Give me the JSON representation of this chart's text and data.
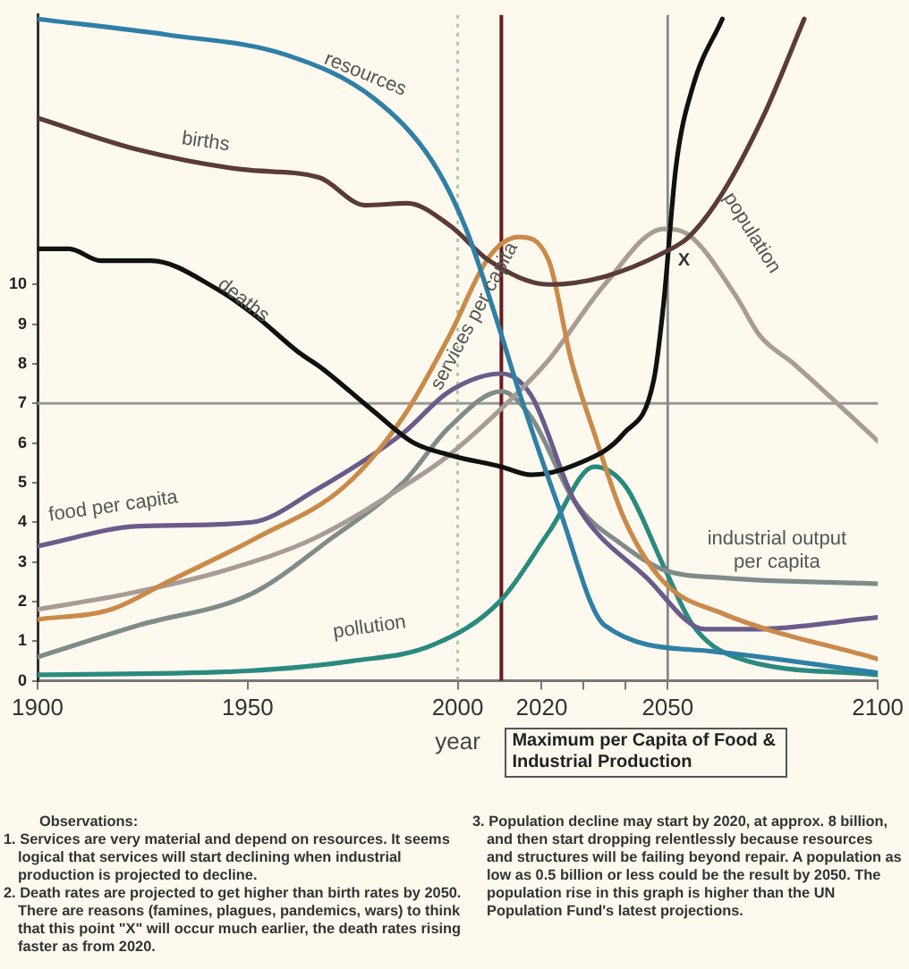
{
  "chart_data": {
    "type": "line",
    "xlabel": "year",
    "xlim": [
      1900,
      2100
    ],
    "xticks": [
      1900,
      1950,
      2000,
      2020,
      {
        "value": 2030,
        "label": null
      },
      {
        "value": 2040,
        "label": null
      },
      2050,
      2100
    ],
    "ylim": [
      0,
      16.8
    ],
    "yticks": [
      0,
      1,
      2,
      3,
      4,
      5,
      6,
      7,
      8,
      9,
      10
    ],
    "grid": false,
    "legend": false,
    "marker": "none",
    "line_style": "solid",
    "series": [
      {
        "name": "resources",
        "color": "#2f7fa6",
        "x": [
          1900,
          1931,
          1959,
          1980,
          1994,
          2002,
          2009.6,
          2014.6,
          2024,
          2035,
          2060,
          2100
        ],
        "values": [
          16.7,
          16.3,
          15.8,
          14.7,
          13.1,
          11.4,
          9.0,
          7.3,
          4.4,
          1.4,
          0.75,
          0.2
        ]
      },
      {
        "name": "births",
        "color": "#5b3a3a",
        "x": [
          1900,
          1924,
          1949,
          1967,
          1978,
          1988,
          1998,
          2007.5,
          2021.7,
          2035,
          2049,
          2055,
          2063,
          2073,
          2082.5
        ],
        "values": [
          14.2,
          13.4,
          12.9,
          12.7,
          12.0,
          12.05,
          11.5,
          10.6,
          10.0,
          10.2,
          10.8,
          11.2,
          12.3,
          14.3,
          16.7
        ]
      },
      {
        "name": "deaths",
        "color": "#111111",
        "x": [
          1900,
          1907.5,
          1915,
          1927,
          1942.5,
          1952,
          1962,
          1967.5,
          1980,
          1989.6,
          1998,
          2010.4,
          2017.5,
          2028,
          2039.6,
          2046.7,
          2049,
          2052,
          2056,
          2063
        ],
        "values": [
          10.9,
          10.9,
          10.6,
          10.6,
          9.9,
          9.2,
          8.3,
          7.9,
          6.8,
          6.0,
          5.7,
          5.4,
          5.2,
          5.45,
          6.25,
          7.6,
          9.5,
          13.0,
          15.0,
          16.7
        ]
      },
      {
        "name": "services per capita",
        "color": "#c98a4a",
        "x": [
          1900,
          1917.5,
          1931,
          1952,
          1973,
          1987,
          1998,
          2007.5,
          2014.6,
          2021.7,
          2027,
          2032.5,
          2039.6,
          2049,
          2063,
          2100
        ],
        "values": [
          1.55,
          1.8,
          2.5,
          3.6,
          4.9,
          6.65,
          8.7,
          10.7,
          11.2,
          10.6,
          8.1,
          6.25,
          4.1,
          2.5,
          1.7,
          0.55
        ]
      },
      {
        "name": "population",
        "color": "#a89c96",
        "x": [
          1900,
          1921.6,
          1945,
          1966,
          1987,
          1998,
          2014.6,
          2021.7,
          2035,
          2049,
          2055,
          2066,
          2072,
          2080,
          2100
        ],
        "values": [
          1.8,
          2.2,
          2.8,
          3.6,
          4.9,
          5.7,
          7.3,
          8.1,
          10.0,
          11.4,
          11.25,
          9.75,
          8.7,
          8.0,
          6.05
        ]
      },
      {
        "name": "food per capita",
        "color": "#6b5b8b",
        "x": [
          1900,
          1924,
          1951,
          1966,
          1987,
          1998,
          2010.4,
          2017.5,
          2028,
          2045,
          2059,
          2070,
          2100
        ],
        "values": [
          3.4,
          3.9,
          4.0,
          4.8,
          6.25,
          7.3,
          7.75,
          7.2,
          4.5,
          2.6,
          1.3,
          1.3,
          1.6
        ]
      },
      {
        "name": "industrial output per capita",
        "color": "#7f8c89",
        "x": [
          1900,
          1924,
          1951,
          1970,
          1987,
          1998,
          2010.4,
          2017.5,
          2028,
          2039.6,
          2049,
          2063,
          2100
        ],
        "values": [
          0.6,
          1.4,
          2.2,
          3.6,
          5.0,
          6.4,
          7.3,
          6.65,
          4.5,
          3.4,
          2.8,
          2.6,
          2.45
        ]
      },
      {
        "name": "pollution",
        "color": "#2a8a80",
        "x": [
          1900,
          1950,
          1975,
          1994,
          2010,
          2022,
          2032.5,
          2040,
          2049,
          2056,
          2066,
          2100
        ],
        "values": [
          0.15,
          0.25,
          0.5,
          0.9,
          2.0,
          3.8,
          5.4,
          4.9,
          2.9,
          1.4,
          0.6,
          0.15
        ]
      }
    ],
    "ref_lines": [
      {
        "axis": "y",
        "value": 7,
        "color": "#999999"
      },
      {
        "axis": "x",
        "value": 2000,
        "color": "#a8c8a0",
        "line_style": "dotted"
      },
      {
        "axis": "x",
        "value": 2050,
        "color": "#888888"
      },
      {
        "axis": "x",
        "value": 2010.4,
        "color": "#6a1a1a",
        "label": "Maximum per Capita of Food & Industrial Production"
      }
    ],
    "annotations": [
      {
        "text": "X",
        "x": 2052,
        "y": 10.6
      },
      "Observations:",
      "1. Services are very material and depend on resources. It seems logical that services will start declining when industrial production is projected to decline.",
      "2. Death rates are projected to get higher than birth rates by 2050. There are reasons (famines, plagues, pandemics, wars) to think that this point \"X\" will occur much earlier, the death rates rising faster as from 2020.",
      "3. Population decline may start by 2020, at approx. 8 billion, and then start dropping relentlessly because resources and structures will be failing beyond repair. A population as low as 0.5 billion or less could be the result by 2050. The population rise in this graph is higher than the UN Population Fund's latest projections."
    ]
  }
}
